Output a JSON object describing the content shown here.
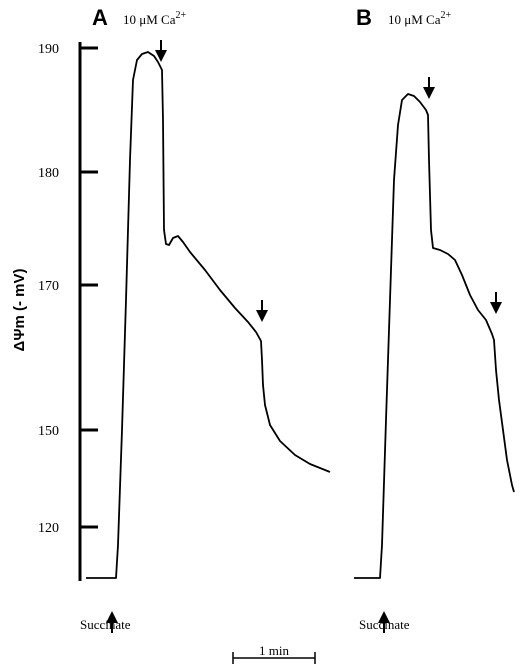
{
  "chart_data": {
    "type": "line",
    "ylabel": "ΔΨm (- mV)",
    "y_ticks": [
      "190",
      "180",
      "170",
      "150",
      "120"
    ],
    "scale_bar_label": "1 min",
    "panels": [
      {
        "letter": "A",
        "header_prefix": "10 μM Ca",
        "header_sup": "2+",
        "start_label": "Succinate",
        "trace": [
          [
            86,
            578
          ],
          [
            116,
            578
          ],
          [
            118,
            545
          ],
          [
            122,
            430
          ],
          [
            126,
            300
          ],
          [
            130,
            160
          ],
          [
            133,
            80
          ],
          [
            137,
            60
          ],
          [
            142,
            54
          ],
          [
            148,
            52
          ],
          [
            154,
            56
          ],
          [
            158,
            62
          ],
          [
            162,
            70
          ],
          [
            163,
            120
          ],
          [
            164,
            230
          ],
          [
            166,
            244
          ],
          [
            169,
            245
          ],
          [
            173,
            238
          ],
          [
            178,
            236
          ],
          [
            183,
            242
          ],
          [
            190,
            252
          ],
          [
            205,
            270
          ],
          [
            220,
            290
          ],
          [
            235,
            308
          ],
          [
            248,
            322
          ],
          [
            256,
            332
          ],
          [
            261,
            341
          ],
          [
            262,
            360
          ],
          [
            263,
            385
          ],
          [
            265,
            405
          ],
          [
            270,
            425
          ],
          [
            280,
            441
          ],
          [
            295,
            455
          ],
          [
            310,
            464
          ],
          [
            330,
            472
          ]
        ],
        "arrows": [
          [
            161,
            62,
            "down"
          ],
          [
            262,
            322,
            "down"
          ],
          [
            112,
            611,
            "up"
          ]
        ]
      },
      {
        "letter": "B",
        "header_prefix": "10 μM Ca",
        "header_sup": "2+",
        "start_label": "Succinate",
        "trace": [
          [
            354,
            578
          ],
          [
            380,
            578
          ],
          [
            382,
            545
          ],
          [
            386,
            420
          ],
          [
            390,
            300
          ],
          [
            394,
            180
          ],
          [
            398,
            125
          ],
          [
            402,
            100
          ],
          [
            408,
            94
          ],
          [
            414,
            96
          ],
          [
            420,
            102
          ],
          [
            426,
            110
          ],
          [
            428,
            115
          ],
          [
            429,
            160
          ],
          [
            431,
            230
          ],
          [
            433,
            248
          ],
          [
            440,
            250
          ],
          [
            448,
            254
          ],
          [
            455,
            260
          ],
          [
            462,
            275
          ],
          [
            470,
            295
          ],
          [
            478,
            310
          ],
          [
            486,
            320
          ],
          [
            492,
            334
          ],
          [
            494,
            340
          ],
          [
            496,
            370
          ],
          [
            499,
            400
          ],
          [
            503,
            430
          ],
          [
            507,
            460
          ],
          [
            512,
            485
          ],
          [
            514,
            492
          ]
        ],
        "arrows": [
          [
            429,
            99,
            "down"
          ],
          [
            496,
            314,
            "down"
          ],
          [
            384,
            611,
            "up"
          ]
        ]
      }
    ]
  }
}
